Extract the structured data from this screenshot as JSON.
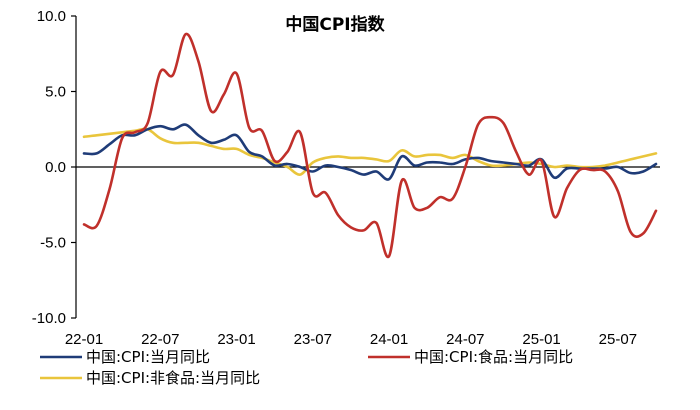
{
  "chart_data": {
    "type": "line",
    "title": "中国CPI指数",
    "xlabel": "",
    "ylabel": "",
    "ylim": [
      -10.0,
      10.0
    ],
    "yticks": [
      "10.0",
      "5.0",
      "0.0",
      "-5.0",
      "-10.0"
    ],
    "yticks_values": [
      10,
      5,
      0,
      -5,
      -10
    ],
    "xticks": [
      "22-01",
      "22-07",
      "23-01",
      "23-07",
      "24-01",
      "24-07",
      "25-01",
      "25-07"
    ],
    "x_start": "2022-01",
    "grid": false,
    "legend_position": "bottom",
    "series": [
      {
        "name": "中国:CPI:当月同比",
        "color": "#1f3c78",
        "values": [
          0.9,
          0.9,
          1.5,
          2.1,
          2.1,
          2.5,
          2.7,
          2.5,
          2.8,
          2.1,
          1.6,
          1.8,
          2.1,
          1.0,
          0.7,
          0.1,
          0.2,
          0.0,
          -0.3,
          0.1,
          0.0,
          -0.2,
          -0.5,
          -0.3,
          -0.8,
          0.7,
          0.1,
          0.3,
          0.3,
          0.2,
          0.5,
          0.6,
          0.4,
          0.3,
          0.2,
          0.1,
          0.5,
          -0.7,
          -0.1,
          -0.1,
          -0.1,
          -0.1,
          0.0,
          -0.4,
          -0.3,
          0.2
        ]
      },
      {
        "name": "中国:CPI:食品:当月同比",
        "color": "#c0302b",
        "values": [
          -3.8,
          -3.9,
          -1.5,
          1.9,
          2.3,
          2.9,
          6.3,
          6.1,
          8.8,
          7.0,
          3.7,
          4.8,
          6.2,
          2.6,
          2.4,
          0.4,
          1.0,
          2.3,
          -1.7,
          -1.7,
          -3.2,
          -4.0,
          -4.2,
          -3.7,
          -5.9,
          -0.9,
          -2.7,
          -2.7,
          -2.0,
          -2.1,
          0.0,
          2.8,
          3.3,
          2.9,
          1.0,
          -0.5,
          0.4,
          -3.3,
          -1.4,
          -0.2,
          -0.2,
          -0.3,
          -1.6,
          -4.3,
          -4.4,
          -2.9
        ]
      },
      {
        "name": "中国:CPI:非食品:当月同比",
        "color": "#e9c53c",
        "values": [
          2.0,
          2.1,
          2.2,
          2.3,
          2.4,
          2.5,
          1.9,
          1.6,
          1.6,
          1.6,
          1.4,
          1.2,
          1.2,
          0.8,
          0.6,
          0.3,
          0.0,
          -0.5,
          0.3,
          0.6,
          0.7,
          0.6,
          0.6,
          0.5,
          0.4,
          1.1,
          0.7,
          0.8,
          0.8,
          0.6,
          0.8,
          0.4,
          0.1,
          0.1,
          0.2,
          0.3,
          0.2,
          0.0,
          0.1,
          0.0,
          0.0,
          0.1,
          0.3,
          0.5,
          0.7,
          0.9
        ]
      }
    ]
  }
}
